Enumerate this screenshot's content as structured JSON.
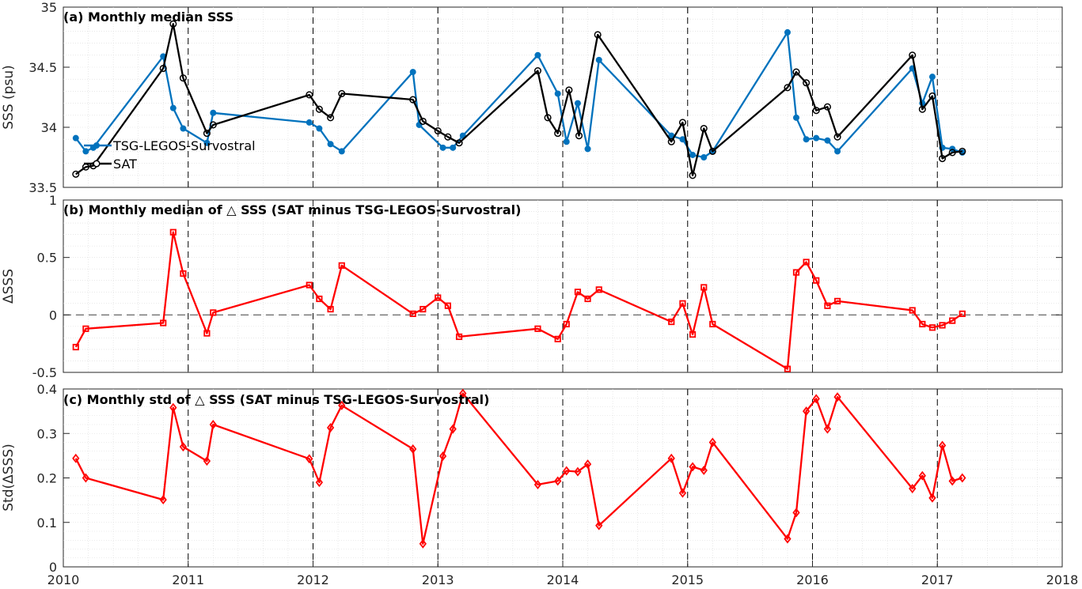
{
  "chart_data": [
    {
      "type": "line",
      "title": "(a) Monthly median SSS",
      "ylabel": "SSS (psu)",
      "xlim": [
        2010,
        2018
      ],
      "ylim": [
        33.5,
        35
      ],
      "yticks": [
        "33.5",
        "34",
        "34.5",
        "35"
      ],
      "yticks_values": [
        33.5,
        34,
        34.5,
        35
      ],
      "grid": true,
      "legend_position": "left",
      "series": [
        {
          "name": "TSG-LEGOS-Survostral",
          "color": "#0072BD",
          "marker": "filled-circle",
          "x": [
            2010.1,
            2010.18,
            2010.24,
            2010.8,
            2010.88,
            2010.96,
            2011.15,
            2011.2,
            2011.97,
            2012.05,
            2012.14,
            2012.23,
            2012.8,
            2012.85,
            2013.04,
            2013.12,
            2013.2,
            2013.8,
            2013.96,
            2014.03,
            2014.12,
            2014.2,
            2014.29,
            2014.87,
            2014.96,
            2015.04,
            2015.13,
            2015.2,
            2015.8,
            2015.87,
            2015.95,
            2016.03,
            2016.12,
            2016.2,
            2016.8,
            2016.88,
            2016.96,
            2017.04,
            2017.12,
            2017.2
          ],
          "y": [
            33.91,
            33.8,
            33.83,
            34.59,
            34.16,
            33.99,
            33.87,
            34.12,
            34.04,
            33.99,
            33.86,
            33.8,
            34.46,
            34.02,
            33.83,
            33.83,
            33.93,
            34.6,
            34.28,
            33.88,
            34.2,
            33.82,
            34.56,
            33.93,
            33.9,
            33.77,
            33.75,
            33.8,
            34.79,
            34.08,
            33.9,
            33.91,
            33.89,
            33.8,
            34.49,
            34.2,
            34.42,
            33.83,
            33.82,
            33.79
          ]
        },
        {
          "name": "SAT",
          "color": "#000000",
          "marker": "open-circle",
          "x": [
            2010.1,
            2010.18,
            2010.24,
            2010.8,
            2010.88,
            2010.96,
            2011.15,
            2011.2,
            2011.97,
            2012.05,
            2012.14,
            2012.23,
            2012.8,
            2012.88,
            2013.0,
            2013.08,
            2013.17,
            2013.8,
            2013.88,
            2013.96,
            2014.05,
            2014.13,
            2014.28,
            2014.87,
            2014.96,
            2015.04,
            2015.13,
            2015.2,
            2015.8,
            2015.87,
            2015.95,
            2016.03,
            2016.12,
            2016.2,
            2016.8,
            2016.88,
            2016.96,
            2017.04,
            2017.12,
            2017.2
          ],
          "y": [
            33.61,
            33.67,
            33.68,
            34.49,
            34.86,
            34.41,
            33.95,
            34.02,
            34.27,
            34.15,
            34.08,
            34.28,
            34.23,
            34.05,
            33.97,
            33.92,
            33.87,
            34.47,
            34.08,
            33.95,
            34.31,
            33.93,
            34.77,
            33.88,
            34.04,
            33.6,
            33.99,
            33.8,
            34.33,
            34.46,
            34.37,
            34.14,
            34.17,
            33.92,
            34.6,
            34.15,
            34.26,
            33.74,
            33.79,
            33.8
          ]
        }
      ]
    },
    {
      "type": "line",
      "title": "(b) Monthly median of △ SSS (SAT minus TSG-LEGOS-Survostral)",
      "ylabel": "ΔSSS",
      "xlim": [
        2010,
        2018
      ],
      "ylim": [
        -0.5,
        1
      ],
      "yticks": [
        "-0.5",
        "0",
        "0.5",
        "1"
      ],
      "yticks_values": [
        -0.5,
        0,
        0.5,
        1
      ],
      "grid": true,
      "zero_line": true,
      "series": [
        {
          "name": "",
          "color": "#FF0000",
          "marker": "square",
          "x": [
            2010.1,
            2010.18,
            2010.8,
            2010.88,
            2010.96,
            2011.15,
            2011.2,
            2011.97,
            2012.05,
            2012.14,
            2012.23,
            2012.8,
            2012.88,
            2013.0,
            2013.08,
            2013.17,
            2013.8,
            2013.96,
            2014.03,
            2014.12,
            2014.2,
            2014.29,
            2014.87,
            2014.96,
            2015.04,
            2015.13,
            2015.2,
            2015.8,
            2015.87,
            2015.95,
            2016.03,
            2016.12,
            2016.2,
            2016.8,
            2016.88,
            2016.96,
            2017.04,
            2017.12,
            2017.2
          ],
          "y": [
            -0.28,
            -0.12,
            -0.07,
            0.72,
            0.36,
            -0.16,
            0.02,
            0.26,
            0.14,
            0.05,
            0.43,
            0.01,
            0.05,
            0.15,
            0.08,
            -0.19,
            -0.12,
            -0.21,
            -0.08,
            0.2,
            0.14,
            0.22,
            -0.06,
            0.1,
            -0.17,
            0.24,
            -0.08,
            -0.47,
            0.37,
            0.46,
            0.3,
            0.08,
            0.12,
            0.04,
            -0.08,
            -0.11,
            -0.09,
            -0.05,
            0.01
          ]
        }
      ]
    },
    {
      "type": "line",
      "title": "(c) Monthly std of △ SSS (SAT minus TSG-LEGOS-Survostral)",
      "ylabel": "Std(ΔSSS)",
      "xlabel": "",
      "xlim": [
        2010,
        2018
      ],
      "ylim": [
        0,
        0.4
      ],
      "yticks": [
        "0",
        "0.1",
        "0.2",
        "0.3",
        "0.4"
      ],
      "yticks_values": [
        0,
        0.1,
        0.2,
        0.3,
        0.4
      ],
      "xticks": [
        "2010",
        "2011",
        "2012",
        "2013",
        "2014",
        "2015",
        "2016",
        "2017",
        "2018"
      ],
      "xticks_values": [
        2010,
        2011,
        2012,
        2013,
        2014,
        2015,
        2016,
        2017,
        2018
      ],
      "grid": true,
      "series": [
        {
          "name": "",
          "color": "#FF0000",
          "marker": "diamond",
          "x": [
            2010.1,
            2010.18,
            2010.8,
            2010.88,
            2010.96,
            2011.15,
            2011.2,
            2011.97,
            2012.05,
            2012.14,
            2012.23,
            2012.8,
            2012.88,
            2013.04,
            2013.12,
            2013.2,
            2013.8,
            2013.96,
            2014.03,
            2014.12,
            2014.2,
            2014.29,
            2014.87,
            2014.96,
            2015.04,
            2015.13,
            2015.2,
            2015.8,
            2015.87,
            2015.95,
            2016.03,
            2016.12,
            2016.2,
            2016.8,
            2016.88,
            2016.96,
            2017.04,
            2017.12,
            2017.2
          ],
          "y": [
            0.244,
            0.2,
            0.151,
            0.358,
            0.27,
            0.238,
            0.32,
            0.243,
            0.19,
            0.313,
            0.363,
            0.265,
            0.052,
            0.249,
            0.31,
            0.39,
            0.185,
            0.193,
            0.216,
            0.214,
            0.231,
            0.093,
            0.244,
            0.166,
            0.225,
            0.217,
            0.28,
            0.063,
            0.122,
            0.35,
            0.378,
            0.31,
            0.382,
            0.176,
            0.205,
            0.155,
            0.273,
            0.193,
            0.2
          ]
        }
      ]
    }
  ]
}
